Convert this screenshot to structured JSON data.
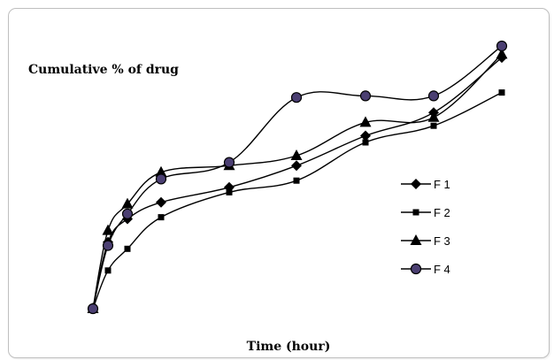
{
  "chart_data": {
    "type": "line",
    "title": "",
    "ylabel": "Cumulative % of drug",
    "xlabel": "Time (hour)",
    "x": [
      0,
      0.25,
      0.5,
      1,
      2,
      4,
      6,
      8,
      12
    ],
    "legend_position": "right",
    "grid": false,
    "axes_visible": false,
    "series": [
      {
        "name": "F 1",
        "marker": "diamond",
        "color": "#000000",
        "values": [
          0,
          40,
          54,
          64,
          73,
          86,
          104,
          118,
          151
        ]
      },
      {
        "name": "F 2",
        "marker": "square",
        "color": "#000000",
        "values": [
          0,
          23,
          36,
          55,
          70,
          77,
          100,
          110,
          130
        ]
      },
      {
        "name": "F 3",
        "marker": "triangle",
        "color": "#000000",
        "values": [
          0,
          47,
          63,
          82,
          86,
          92,
          112,
          115,
          153
        ]
      },
      {
        "name": "F 4",
        "marker": "circle",
        "color": "#000000",
        "marker_fill": "#4b3f72",
        "values": [
          0,
          38,
          57,
          78,
          88,
          127,
          128,
          128,
          158
        ]
      }
    ]
  }
}
